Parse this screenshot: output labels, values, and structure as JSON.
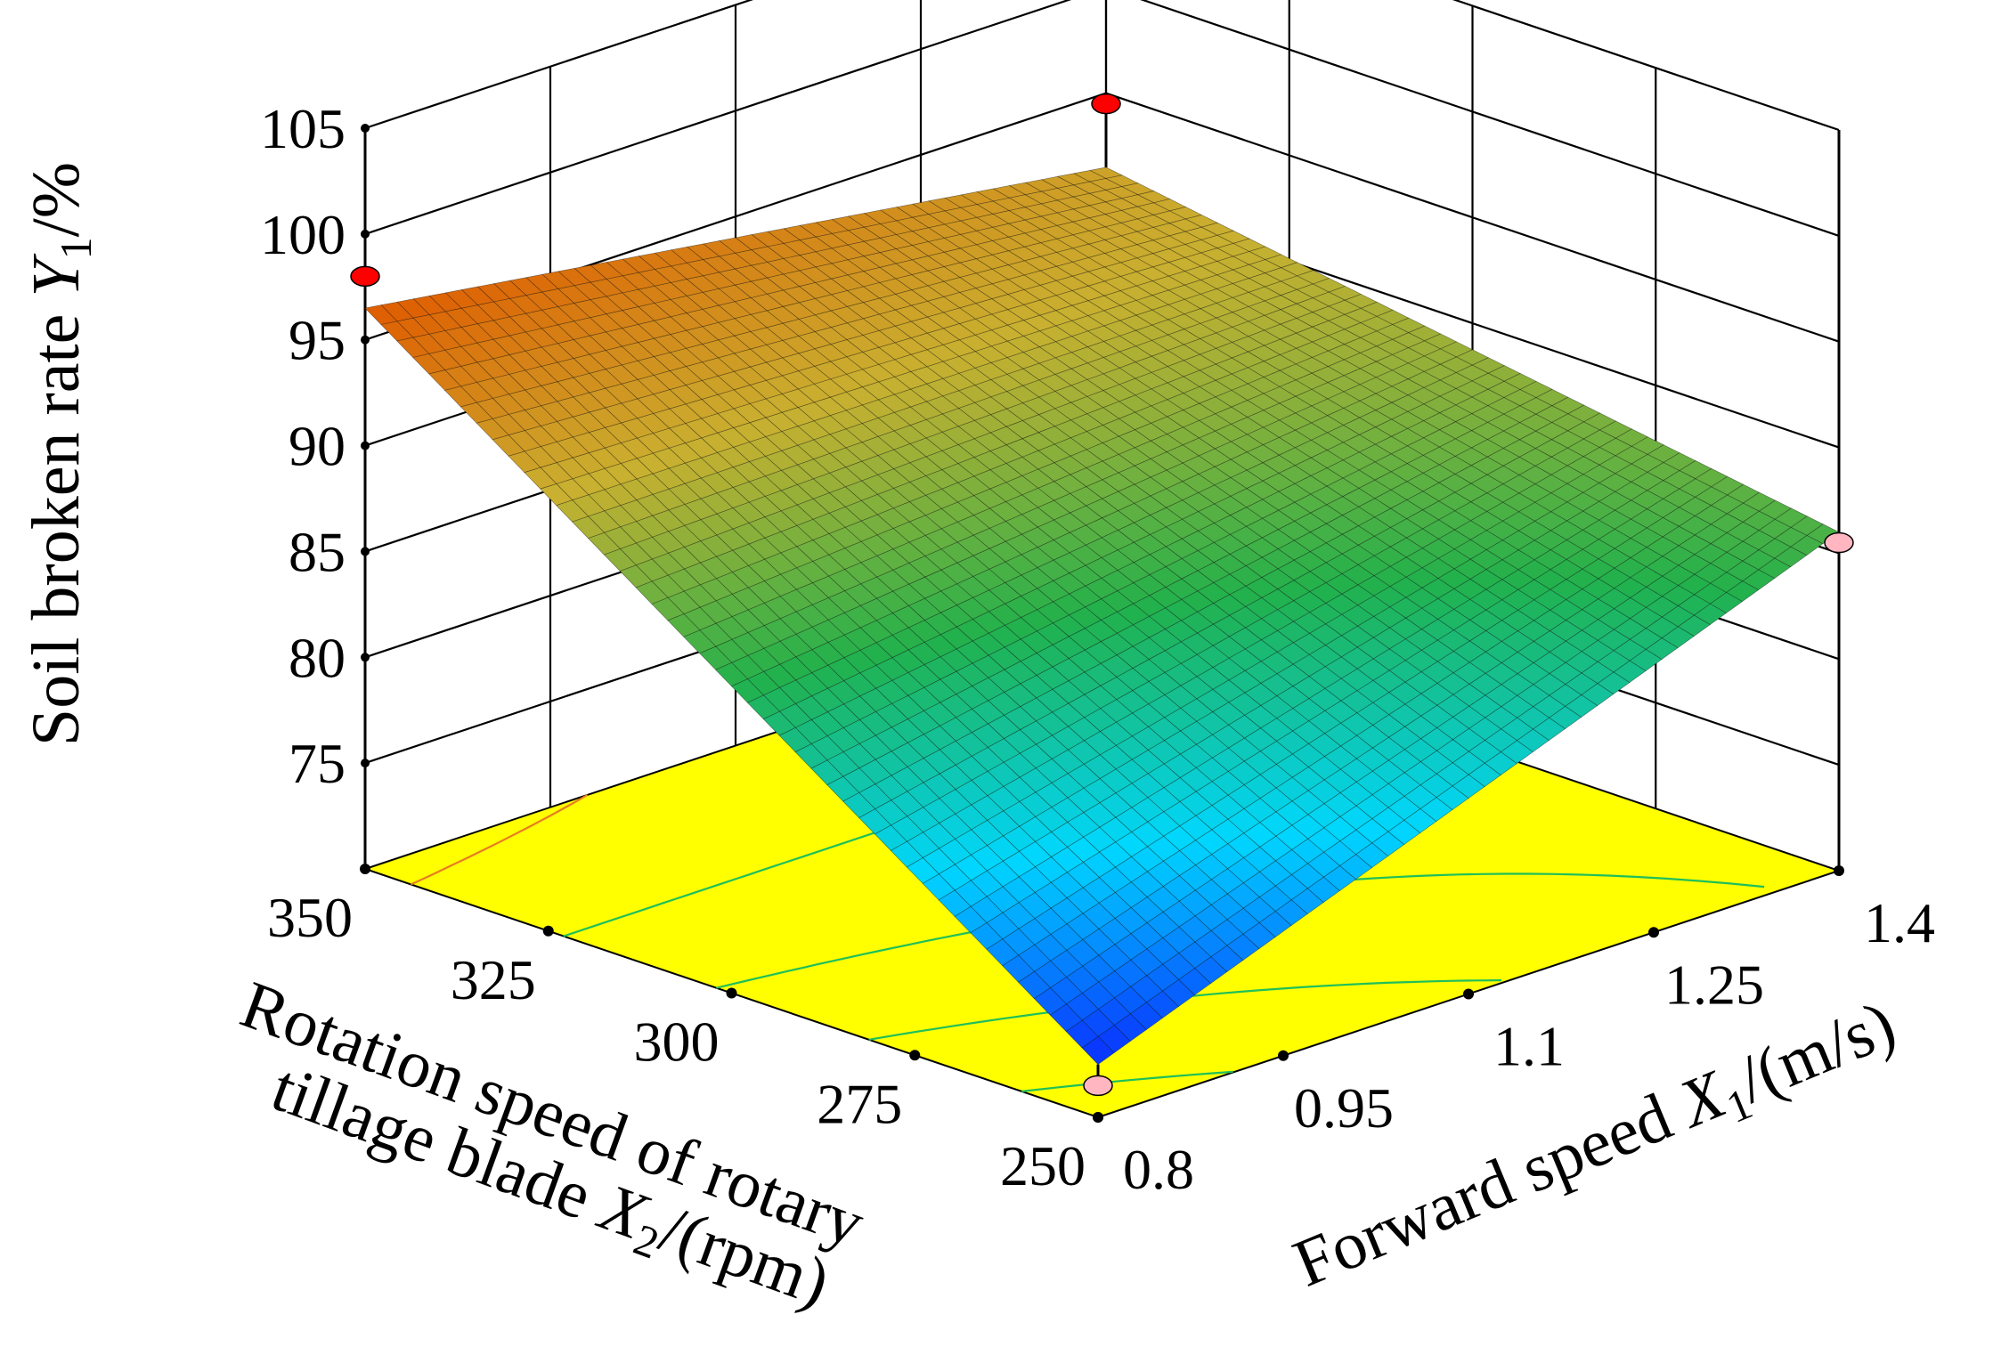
{
  "chart_data": {
    "type": "surface",
    "title": "",
    "zlabel": {
      "prefix": "Soil broken rate ",
      "var": "Y",
      "sub": "1",
      "suffix": "/%"
    },
    "xlabel": {
      "prefix": "Forward speed ",
      "var": "X",
      "sub": "1",
      "suffix": "/(m/s)"
    },
    "ylabel": {
      "line1": "Rotation speed of rotary",
      "line2_prefix": "tillage blade ",
      "var": "X",
      "sub": "2",
      "suffix": "/(rpm)"
    },
    "x_ticks": [
      "0.8",
      "0.95",
      "1.1",
      "1.25",
      "1.4"
    ],
    "x_tick_values": [
      0.8,
      0.95,
      1.1,
      1.25,
      1.4
    ],
    "y_ticks": [
      "250",
      "275",
      "300",
      "325",
      "350"
    ],
    "y_tick_values": [
      250,
      275,
      300,
      325,
      350
    ],
    "z_ticks": [
      "75",
      "80",
      "85",
      "90",
      "95",
      "100",
      "105"
    ],
    "z_tick_values": [
      75,
      80,
      85,
      90,
      95,
      100,
      105
    ],
    "xlim": [
      0.8,
      1.4
    ],
    "ylim": [
      250,
      350
    ],
    "zlim": [
      70,
      105
    ],
    "surface_corners": [
      {
        "x": 0.8,
        "y": 250,
        "z": 72.5
      },
      {
        "x": 0.8,
        "y": 350,
        "z": 96.5
      },
      {
        "x": 1.4,
        "y": 250,
        "z": 86.0
      },
      {
        "x": 1.4,
        "y": 350,
        "z": 91.5
      }
    ],
    "design_points": [
      {
        "x": 0.8,
        "y": 350,
        "z": 98.0,
        "position": "above surface",
        "color": "#ff0000"
      },
      {
        "x": 1.4,
        "y": 350,
        "z": 94.5,
        "position": "above surface",
        "color": "#ff0000"
      },
      {
        "x": 1.4,
        "y": 250,
        "z": 85.5,
        "position": "below surface",
        "color": "#ffb6c1"
      },
      {
        "x": 0.8,
        "y": 250,
        "z": 71.5,
        "position": "below surface",
        "color": "#ffb6c1"
      }
    ],
    "floor_color": "#ffff00",
    "colormap": [
      "#0a2cff",
      "#00d7ff",
      "#22b14c",
      "#c9b030",
      "#e05b00"
    ]
  }
}
